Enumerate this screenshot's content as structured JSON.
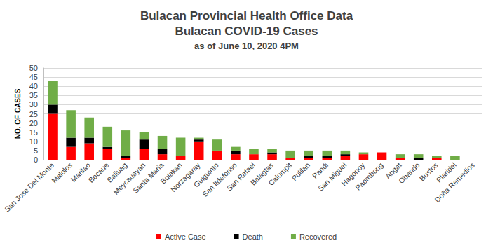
{
  "chart_data": {
    "type": "bar",
    "title": "Bulacan Provincial Health Office Data\nBulacan COVID-19 Cases",
    "subtitle": "as of June 10, 2020 4PM",
    "y_label": "NO. OF CASES",
    "categories": [
      "San Jose Del Monte",
      "Malolos",
      "Marilao",
      "Bocaue",
      "Baliuag",
      "Meycauayan",
      "Santa Maria",
      "Bulakan",
      "Norzagaray",
      "Guiguinto",
      "San Ildefonso",
      "San Rafael",
      "Balagtas",
      "Calumpit",
      "Pulilan",
      "Pandi",
      "San Miguel",
      "Hagonoy",
      "Paombong",
      "Angat",
      "Obando",
      "Bustos",
      "Plaridel",
      "Doña Remedios"
    ],
    "series": [
      {
        "name": "Active Case",
        "color": "#ff0000",
        "values": [
          25,
          7,
          9,
          6,
          1,
          6,
          3,
          2,
          10,
          5,
          3,
          3,
          3,
          1,
          1,
          1,
          2,
          3,
          4,
          1,
          0,
          1,
          0,
          0
        ]
      },
      {
        "name": "Death",
        "color": "#000000",
        "values": [
          5,
          5,
          3,
          1,
          1,
          5,
          3,
          0,
          1,
          0,
          2,
          0,
          1,
          0,
          1,
          1,
          1,
          0,
          0,
          0,
          1,
          0,
          0,
          0
        ]
      },
      {
        "name": "Recovered",
        "color": "#70ad47",
        "values": [
          13,
          15,
          11,
          11,
          14,
          4,
          7,
          10,
          1,
          6,
          2,
          3,
          2,
          4,
          3,
          3,
          2,
          1,
          0,
          2,
          2,
          1,
          2,
          0
        ]
      }
    ],
    "ylim": [
      0,
      50
    ],
    "yticks": [
      0,
      5,
      10,
      15,
      20,
      25,
      30,
      35,
      40,
      45,
      50
    ],
    "stacked": true,
    "grid": true,
    "legend": "bottom"
  }
}
